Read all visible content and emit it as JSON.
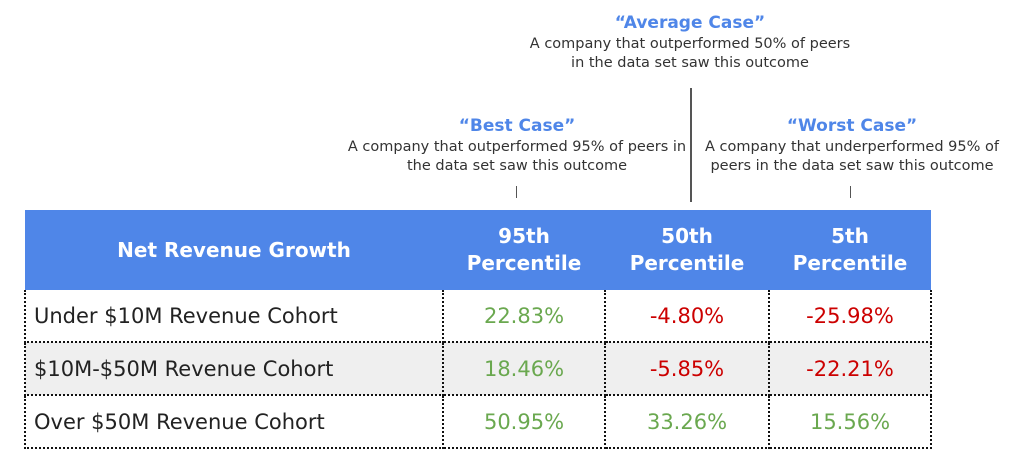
{
  "annotations": {
    "average": {
      "title": "“Average Case”",
      "line1": "A company that outperformed 50% of peers",
      "line2": "in the data set saw this outcome"
    },
    "best": {
      "title": "“Best Case”",
      "line1": "A company that outperformed 95% of peers in",
      "line2": "the data set saw this outcome"
    },
    "worst": {
      "title": "“Worst Case”",
      "line1": "A company that underperformed 95% of",
      "line2": "peers in the data set saw this outcome"
    }
  },
  "table": {
    "headers": {
      "metric": "Net Revenue Growth",
      "p95_line1": "95th",
      "p95_line2": "Percentile",
      "p50_line1": "50th",
      "p50_line2": "Percentile",
      "p5_line1": "5th",
      "p5_line2": "Percentile"
    },
    "rows": [
      {
        "label": "Under $10M Revenue Cohort",
        "p95": "22.83%",
        "p50": "-4.80%",
        "p5": "-25.98%"
      },
      {
        "label": "$10M-$50M Revenue Cohort",
        "p95": "18.46%",
        "p50": "-5.85%",
        "p5": "-22.21%"
      },
      {
        "label": "Over $50M Revenue Cohort",
        "p95": "50.95%",
        "p50": "33.26%",
        "p5": "15.56%"
      }
    ]
  },
  "colors": {
    "header_bg": "#4f86e8",
    "positive": "#6aa84f",
    "negative": "#cc0000",
    "alt_row": "#efefef"
  }
}
